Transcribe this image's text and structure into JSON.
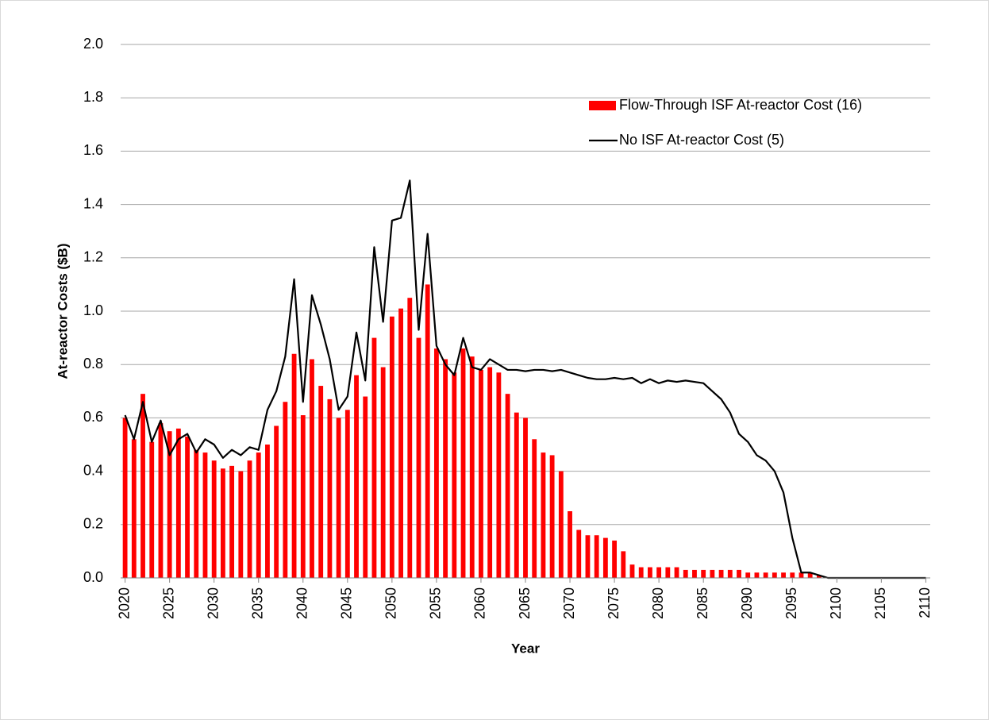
{
  "chart_data": {
    "type": "bar+line",
    "ylabel": "At-reactor Costs ($B)",
    "xlabel": "Year",
    "x": [
      2020,
      2021,
      2022,
      2023,
      2024,
      2025,
      2026,
      2027,
      2028,
      2029,
      2030,
      2031,
      2032,
      2033,
      2034,
      2035,
      2036,
      2037,
      2038,
      2039,
      2040,
      2041,
      2042,
      2043,
      2044,
      2045,
      2046,
      2047,
      2048,
      2049,
      2050,
      2051,
      2052,
      2053,
      2054,
      2055,
      2056,
      2057,
      2058,
      2059,
      2060,
      2061,
      2062,
      2063,
      2064,
      2065,
      2066,
      2067,
      2068,
      2069,
      2070,
      2071,
      2072,
      2073,
      2074,
      2075,
      2076,
      2077,
      2078,
      2079,
      2080,
      2081,
      2082,
      2083,
      2084,
      2085,
      2086,
      2087,
      2088,
      2089,
      2090,
      2091,
      2092,
      2093,
      2094,
      2095,
      2096,
      2097,
      2098,
      2099,
      2100,
      2101,
      2102,
      2103,
      2104,
      2105,
      2106,
      2107,
      2108,
      2109,
      2110
    ],
    "series": [
      {
        "name": "Flow-Through ISF At-reactor Cost (16)",
        "kind": "bar",
        "color": "#ff0000",
        "values": [
          0.6,
          0.52,
          0.69,
          0.51,
          0.58,
          0.55,
          0.56,
          0.53,
          0.48,
          0.47,
          0.44,
          0.41,
          0.42,
          0.4,
          0.44,
          0.47,
          0.5,
          0.57,
          0.66,
          0.84,
          0.61,
          0.82,
          0.72,
          0.67,
          0.6,
          0.63,
          0.76,
          0.68,
          0.9,
          0.79,
          0.98,
          1.01,
          1.05,
          0.9,
          1.1,
          0.86,
          0.82,
          0.77,
          0.86,
          0.83,
          0.78,
          0.79,
          0.77,
          0.69,
          0.62,
          0.6,
          0.52,
          0.47,
          0.46,
          0.4,
          0.25,
          0.18,
          0.16,
          0.16,
          0.15,
          0.14,
          0.1,
          0.05,
          0.04,
          0.04,
          0.04,
          0.04,
          0.04,
          0.03,
          0.03,
          0.03,
          0.03,
          0.03,
          0.03,
          0.03,
          0.02,
          0.02,
          0.02,
          0.02,
          0.02,
          0.02,
          0.02,
          0.02,
          0.01,
          0,
          0,
          0,
          0,
          0,
          0,
          0,
          0,
          0,
          0,
          0,
          0
        ]
      },
      {
        "name": "No ISF At-reactor Cost (5)",
        "kind": "line",
        "color": "#000000",
        "values": [
          0.61,
          0.52,
          0.66,
          0.51,
          0.59,
          0.46,
          0.52,
          0.54,
          0.47,
          0.52,
          0.5,
          0.45,
          0.48,
          0.46,
          0.49,
          0.48,
          0.63,
          0.7,
          0.83,
          1.12,
          0.66,
          1.06,
          0.95,
          0.82,
          0.63,
          0.68,
          0.92,
          0.74,
          1.24,
          0.96,
          1.34,
          1.35,
          1.49,
          0.93,
          1.29,
          0.87,
          0.8,
          0.76,
          0.9,
          0.79,
          0.78,
          0.82,
          0.8,
          0.78,
          0.78,
          0.775,
          0.78,
          0.78,
          0.775,
          0.78,
          0.77,
          0.76,
          0.75,
          0.745,
          0.745,
          0.75,
          0.745,
          0.75,
          0.73,
          0.745,
          0.73,
          0.74,
          0.735,
          0.74,
          0.735,
          0.73,
          0.7,
          0.67,
          0.62,
          0.54,
          0.51,
          0.46,
          0.44,
          0.4,
          0.32,
          0.15,
          0.02,
          0.02,
          0.01,
          0,
          0,
          0,
          0,
          0,
          0,
          0,
          0,
          0,
          0,
          0,
          0
        ]
      }
    ],
    "xlim": [
      2019.5,
      2110.5
    ],
    "xticks": [
      2020,
      2025,
      2030,
      2035,
      2040,
      2045,
      2050,
      2055,
      2060,
      2065,
      2070,
      2075,
      2080,
      2085,
      2090,
      2095,
      2100,
      2105,
      2110
    ],
    "ylim": [
      0,
      2
    ],
    "yticks": [
      {
        "value": 0,
        "label": "0.0"
      },
      {
        "value": 0.2,
        "label": "0.2"
      },
      {
        "value": 0.4,
        "label": "0.4"
      },
      {
        "value": 0.6,
        "label": "0.6"
      },
      {
        "value": 0.8,
        "label": "0.8"
      },
      {
        "value": 1,
        "label": "1.0"
      },
      {
        "value": 1.2,
        "label": "1.2"
      },
      {
        "value": 1.4,
        "label": "1.4"
      },
      {
        "value": 1.6,
        "label": "1.6"
      },
      {
        "value": 1.8,
        "label": "1.8"
      },
      {
        "value": 2,
        "label": "2.0"
      }
    ],
    "grid": true,
    "legend": "upper right"
  }
}
